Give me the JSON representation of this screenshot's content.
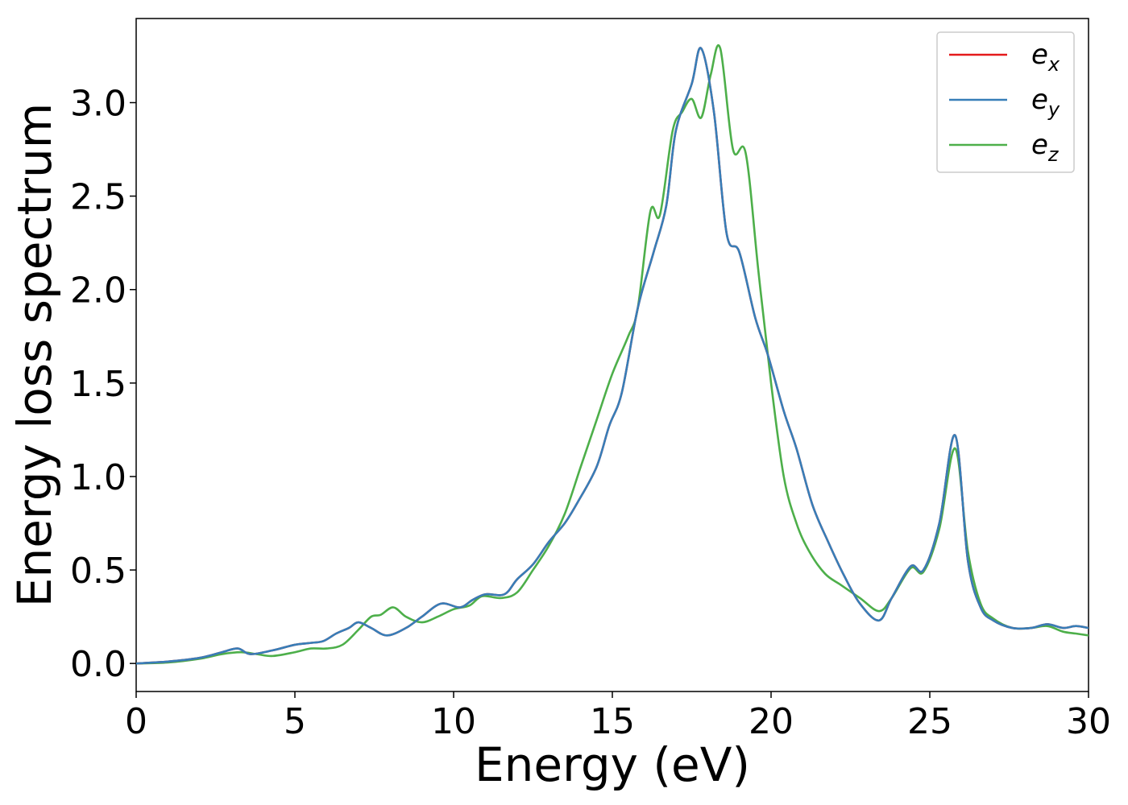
{
  "chart_data": {
    "type": "line",
    "xlabel": "Energy (eV)",
    "ylabel": "Energy loss spectrum",
    "xlim": [
      0,
      30
    ],
    "ylim": [
      -0.15,
      3.45
    ],
    "xticks": [
      0,
      5,
      10,
      15,
      20,
      25,
      30
    ],
    "xtick_labels": [
      "0",
      "5",
      "10",
      "15",
      "20",
      "25",
      "30"
    ],
    "yticks": [
      0.0,
      0.5,
      1.0,
      1.5,
      2.0,
      2.5,
      3.0
    ],
    "ytick_labels": [
      "0.0",
      "0.5",
      "1.0",
      "1.5",
      "2.0",
      "2.5",
      "3.0"
    ],
    "grid": false,
    "legend": "top-right",
    "legend_entries": [
      {
        "base": "e",
        "sub": "x",
        "color": "#e41a1c"
      },
      {
        "base": "e",
        "sub": "y",
        "color": "#377eb8"
      },
      {
        "base": "e",
        "sub": "z",
        "color": "#4daf4a"
      }
    ],
    "series": [
      {
        "name": "e_x",
        "color": "#e41a1c",
        "x": [
          0,
          1,
          2,
          2.7,
          3.2,
          3.6,
          4.3,
          5.0,
          5.5,
          5.9,
          6.3,
          6.7,
          7.0,
          7.4,
          7.9,
          8.5,
          9.0,
          9.6,
          10.2,
          10.6,
          11.0,
          11.6,
          12.0,
          12.5,
          13.0,
          13.5,
          13.9,
          14.5,
          14.9,
          15.3,
          15.8,
          16.3,
          16.7,
          17.0,
          17.5,
          17.8,
          18.2,
          18.6,
          19.0,
          19.5,
          19.9,
          20.4,
          20.8,
          21.3,
          21.8,
          22.3,
          22.8,
          23.4,
          23.8,
          24.4,
          24.8,
          25.3,
          25.8,
          26.2,
          26.6,
          27.0,
          27.6,
          28.2,
          28.7,
          29.2,
          29.6,
          30.0
        ],
        "values": [
          0.0,
          0.01,
          0.03,
          0.06,
          0.08,
          0.05,
          0.07,
          0.1,
          0.11,
          0.12,
          0.16,
          0.19,
          0.22,
          0.19,
          0.15,
          0.19,
          0.25,
          0.32,
          0.3,
          0.34,
          0.37,
          0.37,
          0.45,
          0.53,
          0.65,
          0.75,
          0.86,
          1.05,
          1.27,
          1.45,
          1.9,
          2.2,
          2.45,
          2.85,
          3.1,
          3.29,
          2.95,
          2.3,
          2.2,
          1.85,
          1.65,
          1.35,
          1.15,
          0.85,
          0.65,
          0.47,
          0.32,
          0.23,
          0.35,
          0.52,
          0.5,
          0.75,
          1.22,
          0.55,
          0.3,
          0.23,
          0.19,
          0.19,
          0.21,
          0.19,
          0.2,
          0.19
        ]
      },
      {
        "name": "e_y",
        "color": "#377eb8",
        "x": [
          0,
          1,
          2,
          2.7,
          3.2,
          3.6,
          4.3,
          5.0,
          5.5,
          5.9,
          6.3,
          6.7,
          7.0,
          7.4,
          7.9,
          8.5,
          9.0,
          9.6,
          10.2,
          10.6,
          11.0,
          11.6,
          12.0,
          12.5,
          13.0,
          13.5,
          13.9,
          14.5,
          14.9,
          15.3,
          15.8,
          16.3,
          16.7,
          17.0,
          17.5,
          17.8,
          18.2,
          18.6,
          19.0,
          19.5,
          19.9,
          20.4,
          20.8,
          21.3,
          21.8,
          22.3,
          22.8,
          23.4,
          23.8,
          24.4,
          24.8,
          25.3,
          25.8,
          26.2,
          26.6,
          27.0,
          27.6,
          28.2,
          28.7,
          29.2,
          29.6,
          30.0
        ],
        "values": [
          0.0,
          0.01,
          0.03,
          0.06,
          0.08,
          0.05,
          0.07,
          0.1,
          0.11,
          0.12,
          0.16,
          0.19,
          0.22,
          0.19,
          0.15,
          0.19,
          0.25,
          0.32,
          0.3,
          0.34,
          0.37,
          0.37,
          0.45,
          0.53,
          0.65,
          0.75,
          0.86,
          1.05,
          1.27,
          1.45,
          1.9,
          2.2,
          2.45,
          2.85,
          3.1,
          3.29,
          2.95,
          2.3,
          2.2,
          1.85,
          1.65,
          1.35,
          1.15,
          0.85,
          0.65,
          0.47,
          0.32,
          0.23,
          0.35,
          0.52,
          0.5,
          0.75,
          1.22,
          0.55,
          0.3,
          0.23,
          0.19,
          0.19,
          0.21,
          0.19,
          0.2,
          0.19
        ]
      },
      {
        "name": "e_z",
        "color": "#4daf4a",
        "x": [
          0,
          1,
          2,
          2.7,
          3.3,
          3.8,
          4.3,
          5.0,
          5.5,
          6.0,
          6.5,
          7.0,
          7.4,
          7.7,
          8.1,
          8.5,
          9.0,
          9.5,
          10.0,
          10.5,
          10.9,
          11.5,
          12.0,
          12.5,
          13.0,
          13.5,
          14.0,
          14.5,
          15.0,
          15.5,
          15.8,
          16.2,
          16.5,
          16.9,
          17.2,
          17.5,
          17.8,
          18.1,
          18.4,
          18.8,
          19.2,
          19.6,
          20.0,
          20.4,
          20.8,
          21.2,
          21.7,
          22.2,
          22.8,
          23.4,
          23.8,
          24.4,
          24.8,
          25.3,
          25.8,
          26.2,
          26.6,
          27.0,
          27.6,
          28.2,
          28.7,
          29.2,
          29.6,
          30.0
        ],
        "values": [
          0.0,
          0.005,
          0.025,
          0.05,
          0.06,
          0.05,
          0.04,
          0.06,
          0.08,
          0.08,
          0.1,
          0.18,
          0.25,
          0.26,
          0.3,
          0.25,
          0.22,
          0.25,
          0.29,
          0.31,
          0.36,
          0.35,
          0.38,
          0.5,
          0.63,
          0.8,
          1.05,
          1.3,
          1.55,
          1.75,
          1.9,
          2.42,
          2.4,
          2.85,
          2.95,
          3.02,
          2.92,
          3.15,
          3.29,
          2.75,
          2.73,
          2.1,
          1.5,
          1.0,
          0.75,
          0.6,
          0.48,
          0.42,
          0.35,
          0.28,
          0.35,
          0.51,
          0.49,
          0.72,
          1.15,
          0.6,
          0.32,
          0.24,
          0.19,
          0.19,
          0.2,
          0.17,
          0.16,
          0.15
        ]
      }
    ]
  }
}
